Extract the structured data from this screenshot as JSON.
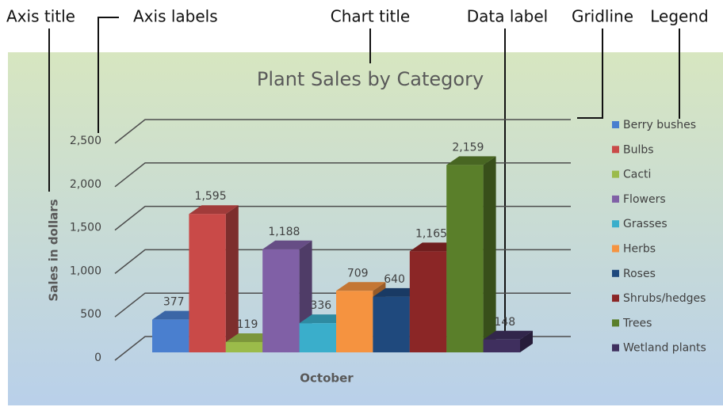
{
  "annotations": [
    "Axis title",
    "Axis labels",
    "Chart title",
    "Data label",
    "Gridline",
    "Legend"
  ],
  "chart_data": {
    "type": "bar3d",
    "title": "Plant Sales by Category",
    "y_label": "Sales in dollars",
    "categories": [
      "October"
    ],
    "ylim": [
      0,
      2500
    ],
    "yticks": [
      0,
      500,
      {
        "value": 1000,
        "label": "1,000"
      },
      {
        "value": 1500,
        "label": "1,500"
      },
      {
        "value": 2000,
        "label": "2,000"
      },
      {
        "value": 2500,
        "label": "2,500"
      }
    ],
    "grid": true,
    "legend": "right",
    "series": [
      {
        "name": "Berry bushes",
        "color": "#4a7fcf",
        "values": [
          377
        ]
      },
      {
        "name": "Bulbs",
        "color": "#c94a48",
        "values": [
          1595
        ],
        "value_labels": [
          "1,595"
        ]
      },
      {
        "name": "Cacti",
        "color": "#9bbb4a",
        "values": [
          119
        ]
      },
      {
        "name": "Flowers",
        "color": "#8060a6",
        "values": [
          1188
        ],
        "value_labels": [
          "1,188"
        ]
      },
      {
        "name": "Grasses",
        "color": "#3aaecb",
        "values": [
          336
        ]
      },
      {
        "name": "Herbs",
        "color": "#f59340",
        "values": [
          709
        ]
      },
      {
        "name": "Roses",
        "color": "#1f497d",
        "values": [
          640
        ]
      },
      {
        "name": "Shrubs/hedges",
        "color": "#8b2626",
        "values": [
          1165
        ],
        "value_labels": [
          "1,165"
        ]
      },
      {
        "name": "Trees",
        "color": "#5a7f2a",
        "values": [
          2159
        ],
        "value_labels": [
          "2,159"
        ]
      },
      {
        "name": "Wetland plants",
        "color": "#3f2f5e",
        "values": [
          148
        ]
      }
    ]
  }
}
